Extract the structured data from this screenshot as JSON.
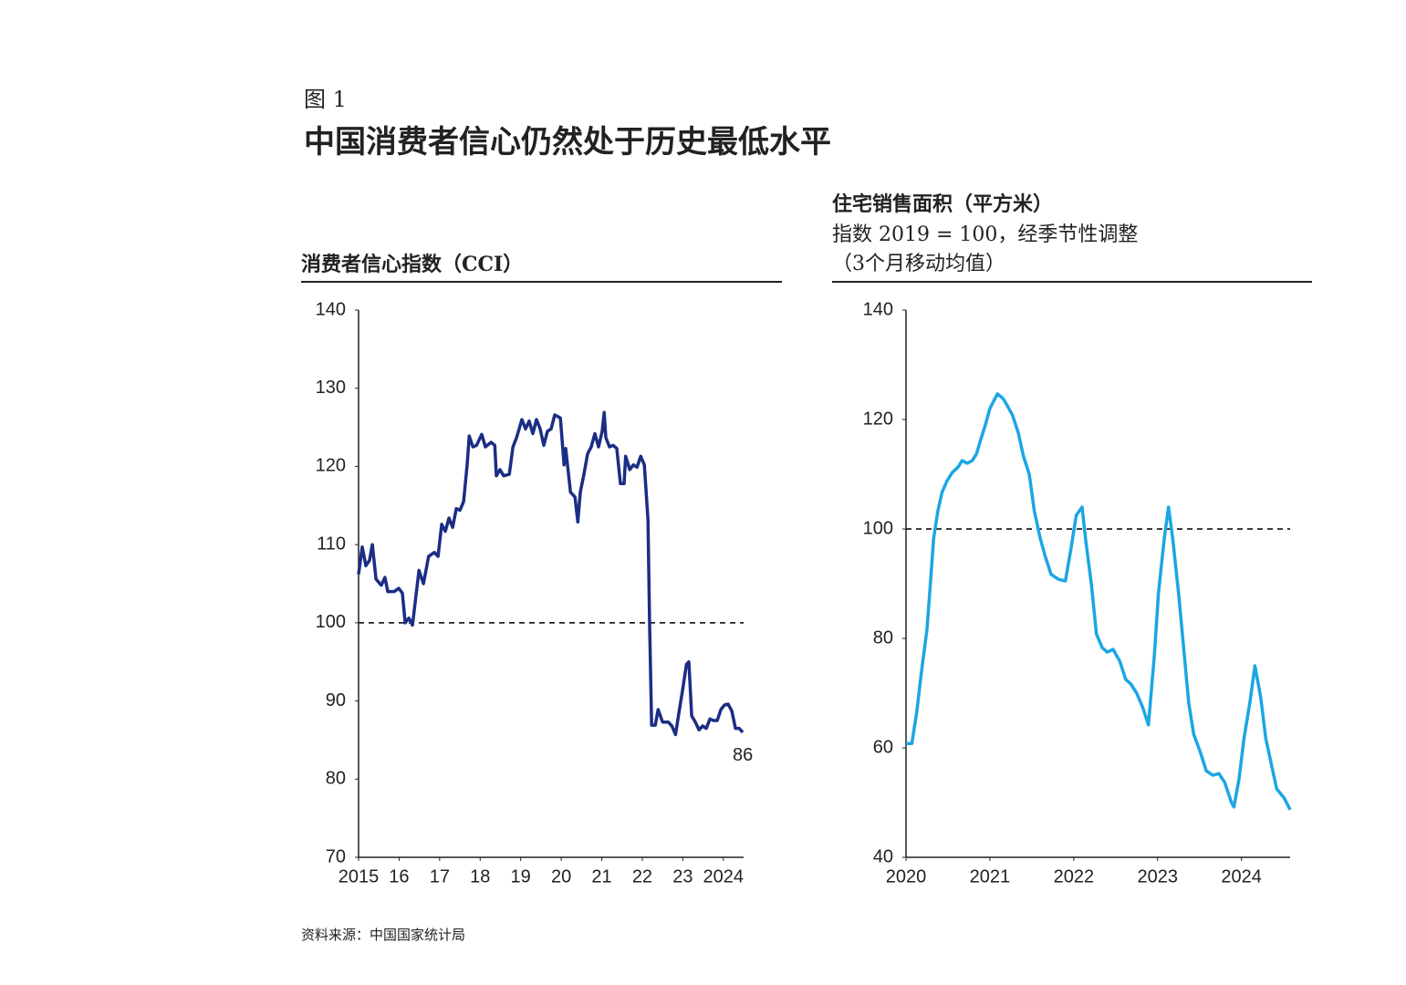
{
  "figure_label": "图 1",
  "title": "中国消费者信心仍然处于历史最低水平",
  "source": "资料来源：中国国家统计局",
  "chart_data": [
    {
      "type": "line",
      "title": "消费者信心指数（CCI）",
      "color": "#1b2d84",
      "x": [
        2015.0,
        2015.09,
        2015.18,
        2015.27,
        2015.34,
        2015.43,
        2015.56,
        2015.65,
        2015.72,
        2015.88,
        2015.99,
        2016.08,
        2016.15,
        2016.24,
        2016.33,
        2016.49,
        2016.6,
        2016.73,
        2016.87,
        2016.96,
        2017.05,
        2017.14,
        2017.23,
        2017.32,
        2017.41,
        2017.5,
        2017.59,
        2017.68,
        2017.73,
        2017.82,
        2017.91,
        2018.04,
        2018.13,
        2018.27,
        2018.36,
        2018.4,
        2018.49,
        2018.58,
        2018.72,
        2018.81,
        2018.9,
        2019.03,
        2019.12,
        2019.21,
        2019.3,
        2019.39,
        2019.48,
        2019.57,
        2019.66,
        2019.75,
        2019.84,
        2019.98,
        2020.07,
        2020.11,
        2020.23,
        2020.34,
        2020.41,
        2020.47,
        2020.56,
        2020.65,
        2020.74,
        2020.83,
        2020.92,
        2021.01,
        2021.06,
        2021.1,
        2021.19,
        2021.28,
        2021.37,
        2021.46,
        2021.55,
        2021.59,
        2021.69,
        2021.78,
        2021.87,
        2021.96,
        2022.05,
        2022.14,
        2022.18,
        2022.23,
        2022.32,
        2022.39,
        2022.5,
        2022.64,
        2022.73,
        2022.82,
        2022.91,
        2023.0,
        2023.09,
        2023.15,
        2023.22,
        2023.31,
        2023.4,
        2023.49,
        2023.58,
        2023.67,
        2023.76,
        2023.85,
        2023.94,
        2024.03,
        2024.12,
        2024.21,
        2024.3,
        2024.39,
        2024.48
      ],
      "values": [
        106.2,
        109.7,
        107.3,
        108,
        110,
        105.6,
        104.8,
        105.8,
        104,
        104,
        104.4,
        103.8,
        100,
        100.6,
        99.7,
        106.7,
        105,
        108.5,
        109,
        108.5,
        112.6,
        111.7,
        113.4,
        112.2,
        114.6,
        114.4,
        115.5,
        120.2,
        123.9,
        122.5,
        122.7,
        124.1,
        122.5,
        123.1,
        122.7,
        118.8,
        119.6,
        118.8,
        119,
        122.5,
        123.7,
        126,
        124.8,
        125.8,
        124.2,
        126,
        124.8,
        122.7,
        124.5,
        124.8,
        126.6,
        126.2,
        120.2,
        122.3,
        116.7,
        116.1,
        112.9,
        116.7,
        119,
        121.6,
        122.5,
        124.2,
        122.5,
        124.5,
        126.9,
        123.7,
        122.5,
        122.7,
        122.3,
        117.8,
        117.8,
        121.3,
        119.6,
        120.2,
        119.9,
        121.3,
        120.2,
        113.2,
        100.3,
        86.9,
        86.9,
        88.9,
        87.3,
        87.3,
        86.8,
        85.7,
        88.7,
        91.6,
        94.7,
        95,
        88.1,
        87.3,
        86.3,
        86.8,
        86.5,
        87.7,
        87.5,
        87.5,
        88.9,
        89.5,
        89.6,
        88.7,
        86.5,
        86.5,
        86
      ],
      "end_label": 86,
      "reference_line": 100,
      "xlim": [
        2015,
        2024.5
      ],
      "xticks": [
        2015,
        {
          "value": 2016,
          "label": "16"
        },
        {
          "value": 2017,
          "label": "17"
        },
        {
          "value": 2018,
          "label": "18"
        },
        {
          "value": 2019,
          "label": "19"
        },
        {
          "value": 2020,
          "label": "20"
        },
        {
          "value": 2021,
          "label": "21"
        },
        {
          "value": 2022,
          "label": "22"
        },
        {
          "value": 2023,
          "label": "23"
        },
        2024
      ],
      "ylim": [
        70,
        140
      ],
      "yticks": [
        70,
        80,
        90,
        100,
        110,
        120,
        130,
        140
      ]
    },
    {
      "type": "line",
      "title": "住宅销售面积（平方米）",
      "subtitle": "指数 2019 = 100，经季节性调整",
      "note": "（3个月移动均值）",
      "color": "#1ba6e3",
      "x": [
        2020.0,
        2020.07,
        2020.13,
        2020.18,
        2020.25,
        2020.29,
        2020.33,
        2020.38,
        2020.43,
        2020.49,
        2020.55,
        2020.62,
        2020.67,
        2020.73,
        2020.79,
        2020.84,
        2020.89,
        2020.95,
        2021.0,
        2021.09,
        2021.16,
        2021.22,
        2021.27,
        2021.34,
        2021.4,
        2021.47,
        2021.53,
        2021.6,
        2021.66,
        2021.73,
        2021.82,
        2021.9,
        2021.97,
        2022.03,
        2022.1,
        2022.14,
        2022.21,
        2022.27,
        2022.34,
        2022.4,
        2022.47,
        2022.55,
        2022.62,
        2022.68,
        2022.75,
        2022.82,
        2022.89,
        2022.96,
        2023.01,
        2023.08,
        2023.13,
        2023.18,
        2023.25,
        2023.32,
        2023.37,
        2023.43,
        2023.51,
        2023.58,
        2023.66,
        2023.73,
        2023.8,
        2023.88,
        2023.91,
        2023.97,
        2024.03,
        2024.1,
        2024.16,
        2024.23,
        2024.29,
        2024.36,
        2024.42,
        2024.51,
        2024.58
      ],
      "values": [
        60.8,
        60.8,
        66.7,
        73.3,
        81.7,
        90,
        98.3,
        103.3,
        106.7,
        108.8,
        110.3,
        111.3,
        112.5,
        112,
        112.5,
        113.7,
        116.3,
        119.2,
        122,
        124.7,
        123.8,
        122.2,
        120.8,
        117.5,
        113.3,
        110,
        103.3,
        98.3,
        95,
        91.7,
        90.8,
        90.5,
        96.7,
        102.5,
        104,
        98.3,
        90,
        80.8,
        78.3,
        77.5,
        78,
        75.8,
        72.5,
        71.7,
        70,
        67.5,
        64.2,
        76.7,
        88.3,
        98.3,
        104,
        98.3,
        88.3,
        76.7,
        68.3,
        62.5,
        59.2,
        55.8,
        55,
        55.3,
        53.7,
        50,
        49.2,
        54.2,
        61.7,
        68.3,
        75,
        69.2,
        61.7,
        56.7,
        52.5,
        50.8,
        48.7
      ],
      "reference_line": 100,
      "xlim": [
        2020,
        2024.58
      ],
      "xticks": [
        2020,
        2021,
        2022,
        2023,
        2024
      ],
      "ylim": [
        40,
        140
      ],
      "yticks": [
        40,
        60,
        80,
        100,
        120,
        140
      ]
    }
  ]
}
